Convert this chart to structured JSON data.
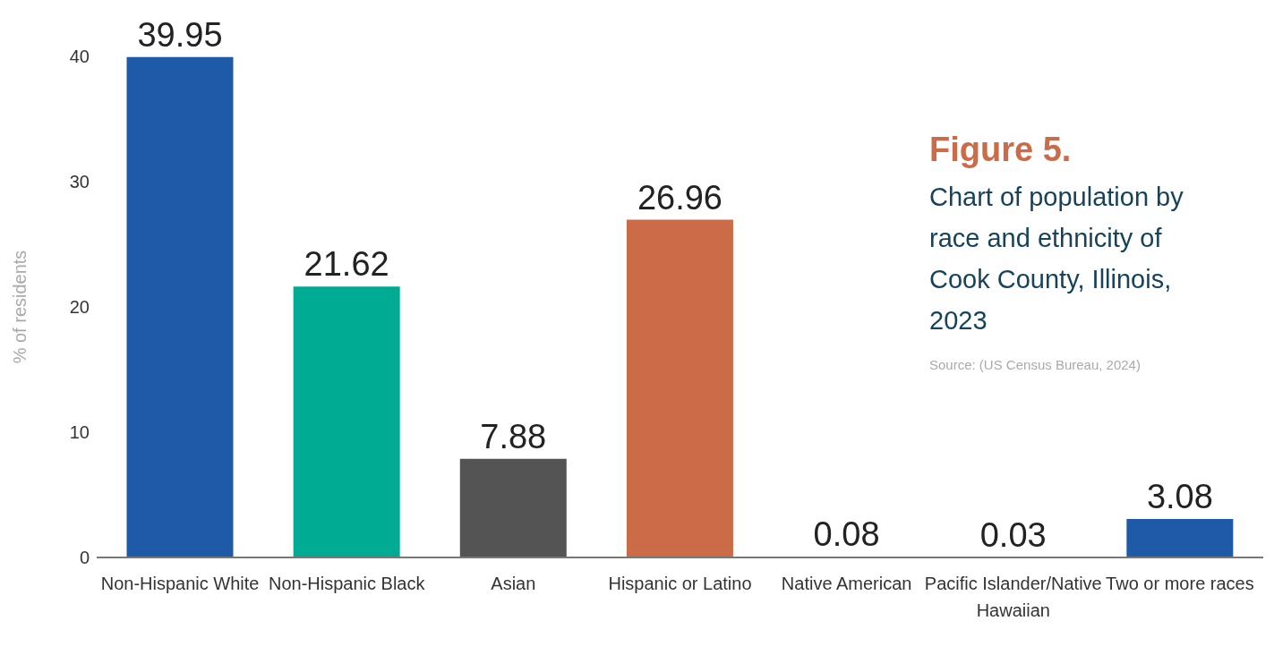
{
  "chart_data": {
    "type": "bar",
    "title": "Figure 5.",
    "subtitle": "Chart of population by race and ethnicity of Cook County, Illinois, 2023",
    "ylabel": "% of residents",
    "categories": [
      "Non-Hispanic White",
      "Non-Hispanic Black",
      "Asian",
      "Hispanic or Latino",
      "Native American",
      "Pacific Islander/Native Hawaiian",
      "Two or more races"
    ],
    "values": [
      39.95,
      21.62,
      7.88,
      26.96,
      0.08,
      0.03,
      3.08
    ],
    "colors": [
      "#1f5aa8",
      "#00ab93",
      "#545454",
      "#cc6b47",
      "#0d3348",
      "#0d3348",
      "#1f5aa8"
    ],
    "ylim": [
      0,
      40
    ],
    "yticks": [
      0,
      10,
      20,
      30,
      40
    ],
    "grid": false,
    "data_labels": true,
    "annotations": [
      "Source: (US Census Bureau, 2024)"
    ]
  }
}
